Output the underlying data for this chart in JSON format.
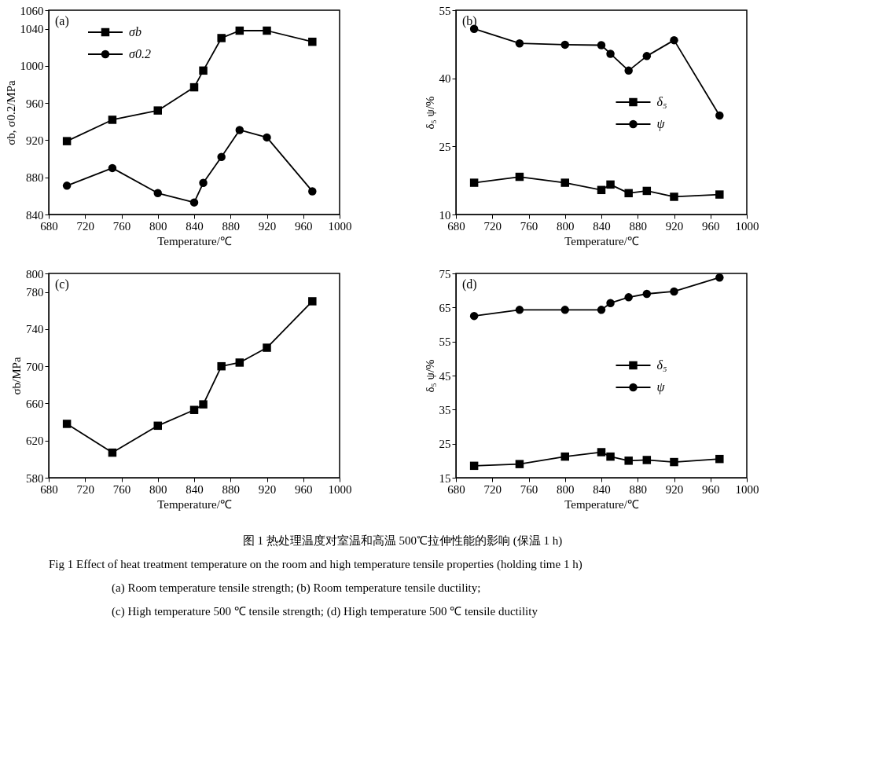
{
  "chart_data": [
    {
      "type": "line",
      "annotations": [
        "(a)"
      ],
      "xlabel": "Temperature/℃",
      "ylabel": "σb, σ0.2/MPa",
      "x": [
        700,
        750,
        800,
        840,
        850,
        870,
        890,
        920,
        970
      ],
      "xlim": [
        680,
        1000
      ],
      "xticks": [
        680,
        720,
        760,
        800,
        840,
        880,
        920,
        960,
        1000
      ],
      "ylim": [
        840,
        1060
      ],
      "yticks": [
        840,
        880,
        920,
        960,
        1000,
        1040,
        1060
      ],
      "legend": "top left",
      "grid": false,
      "series": [
        {
          "name": "σb",
          "color": "#000000",
          "marker": "square",
          "values": [
            919,
            942,
            952,
            977,
            995,
            1030,
            1038,
            1038,
            1026
          ]
        },
        {
          "name": "σ0.2",
          "color": "#000000",
          "marker": "circle",
          "values": [
            871,
            890,
            863,
            853,
            874,
            902,
            931,
            923,
            865
          ]
        }
      ]
    },
    {
      "type": "line",
      "annotations": [
        "(b)"
      ],
      "xlabel": "Temperature/℃",
      "ylabel": "δ₅ ψ/%",
      "x": [
        700,
        750,
        800,
        840,
        850,
        870,
        890,
        920,
        970
      ],
      "xlim": [
        680,
        1000
      ],
      "xticks": [
        680,
        720,
        760,
        800,
        840,
        880,
        920,
        960,
        1000
      ],
      "ylim": [
        10,
        55
      ],
      "yticks": [
        10,
        25,
        40,
        55
      ],
      "legend": "right",
      "grid": false,
      "series": [
        {
          "name": "δ₅",
          "color": "#000000",
          "marker": "square",
          "values": [
            17.0,
            18.3,
            17.0,
            15.4,
            16.6,
            14.7,
            15.2,
            13.9,
            14.4
          ]
        },
        {
          "name": "ψ",
          "color": "#000000",
          "marker": "circle",
          "values": [
            50.9,
            47.7,
            47.4,
            47.3,
            45.4,
            41.7,
            44.9,
            48.4,
            31.8
          ]
        }
      ]
    },
    {
      "type": "line",
      "annotations": [
        "(c)"
      ],
      "xlabel": "Temperature/℃",
      "ylabel": "σb/MPa",
      "x": [
        700,
        750,
        800,
        840,
        850,
        870,
        890,
        920,
        970
      ],
      "xlim": [
        680,
        1000
      ],
      "xticks": [
        680,
        720,
        760,
        800,
        840,
        880,
        920,
        960,
        1000
      ],
      "ylim": [
        580,
        800
      ],
      "yticks": [
        580,
        620,
        660,
        700,
        740,
        780,
        800
      ],
      "grid": false,
      "series": [
        {
          "color": "#000000",
          "marker": "square",
          "values": [
            638,
            607,
            636,
            653,
            659,
            700,
            704,
            720,
            770
          ]
        }
      ]
    },
    {
      "type": "line",
      "annotations": [
        "(d)"
      ],
      "xlabel": "Temperature/℃",
      "ylabel": "δ₅ ψ/%",
      "x": [
        700,
        750,
        800,
        840,
        850,
        870,
        890,
        920,
        970
      ],
      "xlim": [
        680,
        1000
      ],
      "xticks": [
        680,
        720,
        760,
        800,
        840,
        880,
        920,
        960,
        1000
      ],
      "ylim": [
        15,
        75
      ],
      "yticks": [
        15,
        25,
        35,
        45,
        55,
        65,
        75
      ],
      "legend": "right",
      "grid": false,
      "series": [
        {
          "name": "δ₅",
          "color": "#000000",
          "marker": "square",
          "values": [
            18.5,
            19.0,
            21.2,
            22.5,
            21.2,
            20.0,
            20.2,
            19.6,
            20.5
          ]
        },
        {
          "name": "ψ",
          "color": "#000000",
          "marker": "circle",
          "values": [
            62.5,
            64.3,
            64.3,
            64.3,
            66.3,
            68.0,
            69.0,
            69.7,
            73.8
          ]
        }
      ]
    },
    {
      "type": "other",
      "annotations": [
        "图 1 热处理温度对室温和高温 500℃拉伸性能的影响 (保温 1 h)",
        "Fig 1 Effect of heat treatment temperature on the room and high temperature tensile properties (holding time 1 h)",
        "(a) Room temperature tensile strength; (b) Room temperature tensile ductility;",
        "(c) High temperature 500 ℃ tensile strength; (d) High temperature 500 ℃ tensile ductility"
      ]
    }
  ]
}
